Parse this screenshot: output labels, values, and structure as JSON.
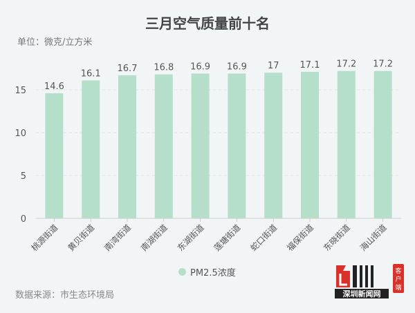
{
  "chart_data": {
    "type": "bar",
    "title": "三月空气质量前十名",
    "unit_label": "单位：微克/立方米",
    "categories": [
      "桃源街道",
      "黄贝街道",
      "南湾街道",
      "南湖街道",
      "东湖街道",
      "莲塘街道",
      "蛇口街道",
      "福保街道",
      "东晓街道",
      "海山街道"
    ],
    "series": [
      {
        "name": "PM2.5浓度",
        "values": [
          14.6,
          16.1,
          16.7,
          16.8,
          16.9,
          16.9,
          17,
          17.1,
          17.2,
          17.2
        ]
      }
    ],
    "yticks": [
      0,
      5,
      10,
      15
    ],
    "ylim": [
      0,
      20
    ],
    "grid": true,
    "legend": "bottom-center",
    "bar_color": "#b5dfca",
    "source": "数据来源：市生态环境局"
  },
  "logo": {
    "text": "深圳新闻网",
    "badge": "客户端",
    "color": "#d9322b"
  }
}
